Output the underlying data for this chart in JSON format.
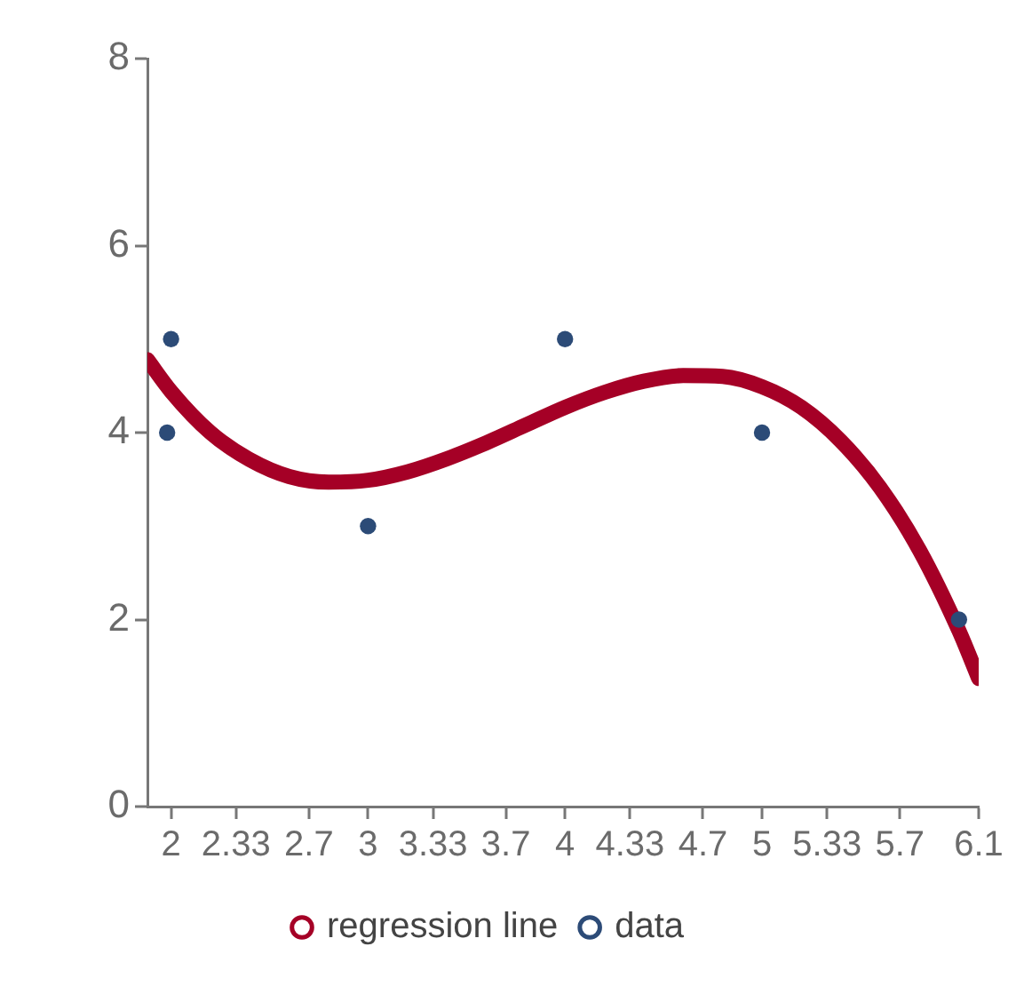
{
  "chart_data": {
    "type": "scatter",
    "legend": "bottom",
    "xlim": [
      1.88,
      6.1
    ],
    "xticks": [
      2,
      2.33,
      2.7,
      3,
      3.33,
      3.7,
      4,
      4.33,
      4.7,
      5,
      5.33,
      5.7,
      6.1
    ],
    "ylim": [
      0,
      8
    ],
    "yticks": [
      0,
      2,
      4,
      6,
      8
    ],
    "series": [
      {
        "name": "regression line",
        "type": "line",
        "color": "#a50026",
        "marker": "none",
        "x": [
          1.88,
          2,
          2.2,
          2.4,
          2.6,
          2.8,
          3,
          3.2,
          3.4,
          3.6,
          3.8,
          4,
          4.2,
          4.4,
          4.6,
          4.8,
          5,
          5.2,
          5.4,
          5.6,
          5.8,
          6,
          6.1
        ],
        "values": [
          4.78,
          4.44,
          4.0,
          3.71,
          3.53,
          3.47,
          3.49,
          3.58,
          3.72,
          3.89,
          4.08,
          4.27,
          4.43,
          4.55,
          4.61,
          4.6,
          4.49,
          4.27,
          3.91,
          3.41,
          2.74,
          1.88,
          1.37
        ]
      },
      {
        "name": "data",
        "color": "#2c4b77",
        "marker": "circle",
        "x": [
          1.98,
          2,
          3,
          4,
          5,
          6
        ],
        "values": [
          4,
          5,
          3,
          5,
          4,
          2
        ]
      }
    ]
  }
}
